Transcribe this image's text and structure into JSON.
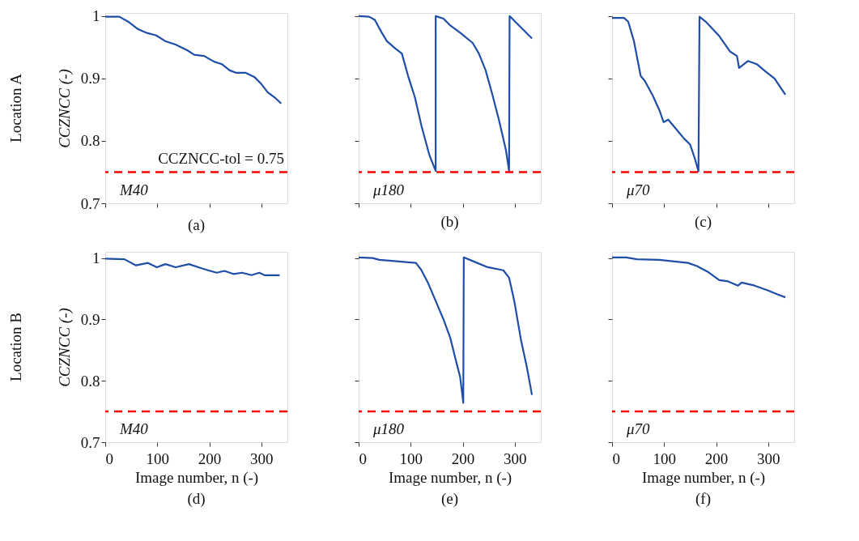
{
  "chart_data": [
    {
      "type": "line",
      "title": "(a)",
      "ylabel": "CCZNCC (-)",
      "tick_labels": "y",
      "annotations": [
        "M40",
        "Location A"
      ],
      "xlim": [
        0,
        350
      ],
      "ylim": [
        0.7,
        1.005
      ],
      "xticks": [
        0,
        100,
        200,
        300
      ],
      "yticks": [
        0.7,
        0.8,
        0.9,
        1
      ],
      "grid": false,
      "series": [
        {
          "color": "#1f4ea8",
          "x": [
            0,
            27,
            46,
            63,
            80,
            98,
            115,
            136,
            158,
            171,
            190,
            209,
            224,
            239,
            252,
            270,
            287,
            300,
            312,
            325,
            338
          ],
          "values": [
            0.999,
            0.999,
            0.99,
            0.979,
            0.973,
            0.969,
            0.96,
            0.954,
            0.945,
            0.938,
            0.936,
            0.927,
            0.923,
            0.913,
            0.909,
            0.909,
            0.902,
            0.891,
            0.878,
            0.87,
            0.86
          ]
        }
      ],
      "ref_lines": [
        {
          "axis": "y",
          "value": 0.75,
          "label": "CCZNCC-tol = 0.75",
          "color": "#ff0000",
          "line_style": "dashed"
        }
      ]
    },
    {
      "type": "line",
      "title": "(b)",
      "tick_labels": false,
      "annotations": [
        "μ180"
      ],
      "xlim": [
        0,
        350
      ],
      "ylim": [
        0.7,
        1.005
      ],
      "xticks": [
        0,
        100,
        200,
        300
      ],
      "yticks": [
        0.7,
        0.8,
        0.9,
        1
      ],
      "grid": false,
      "series": [
        {
          "color": "#1f4ea8",
          "x": [
            0,
            20,
            31,
            44,
            54,
            69,
            83,
            95,
            108,
            121,
            136,
            148,
            148,
            163,
            176,
            197,
            219,
            231,
            244,
            257,
            270,
            283,
            289,
            290,
            303,
            333
          ],
          "values": [
            1.0,
            0.999,
            0.994,
            0.974,
            0.96,
            0.949,
            0.94,
            0.904,
            0.87,
            0.823,
            0.777,
            0.752,
            1.0,
            0.996,
            0.985,
            0.972,
            0.957,
            0.94,
            0.913,
            0.874,
            0.832,
            0.785,
            0.752,
            1.0,
            0.989,
            0.964
          ]
        }
      ],
      "ref_lines": [
        {
          "axis": "y",
          "value": 0.75,
          "color": "#ff0000",
          "line_style": "dashed"
        }
      ]
    },
    {
      "type": "line",
      "title": "(c)",
      "tick_labels": false,
      "annotations": [
        "μ70"
      ],
      "xlim": [
        0,
        350
      ],
      "ylim": [
        0.7,
        1.005
      ],
      "xticks": [
        0,
        100,
        200,
        300
      ],
      "yticks": [
        0.7,
        0.8,
        0.9,
        1
      ],
      "grid": false,
      "series": [
        {
          "color": "#1f4ea8",
          "x": [
            0,
            23,
            31,
            42,
            55,
            63,
            78,
            91,
            99,
            108,
            121,
            138,
            150,
            159,
            166,
            168,
            180,
            206,
            227,
            240,
            244,
            261,
            278,
            295,
            312,
            333
          ],
          "values": [
            0.997,
            0.997,
            0.991,
            0.96,
            0.904,
            0.896,
            0.873,
            0.849,
            0.83,
            0.834,
            0.821,
            0.804,
            0.794,
            0.772,
            0.751,
            0.999,
            0.991,
            0.968,
            0.943,
            0.936,
            0.917,
            0.928,
            0.923,
            0.911,
            0.9,
            0.874
          ]
        }
      ],
      "ref_lines": [
        {
          "axis": "y",
          "value": 0.75,
          "color": "#ff0000",
          "line_style": "dashed"
        }
      ]
    },
    {
      "type": "line",
      "title": "(d)",
      "xlabel": "Image number, n (-)",
      "ylabel": "CCZNCC (-)",
      "annotations": [
        "M40",
        "Location B"
      ],
      "xlim": [
        0,
        350
      ],
      "ylim": [
        0.7,
        1.01
      ],
      "xticks": [
        0,
        100,
        200,
        300
      ],
      "yticks": [
        0.7,
        0.8,
        0.9,
        1
      ],
      "grid": false,
      "series": [
        {
          "color": "#1f4ea8",
          "x": [
            0,
            37,
            59,
            82,
            99,
            116,
            135,
            161,
            186,
            214,
            229,
            246,
            263,
            281,
            296,
            306,
            335
          ],
          "values": [
            0.999,
            0.998,
            0.988,
            0.992,
            0.985,
            0.99,
            0.985,
            0.99,
            0.983,
            0.976,
            0.979,
            0.974,
            0.976,
            0.972,
            0.976,
            0.972,
            0.972
          ]
        }
      ],
      "ref_lines": [
        {
          "axis": "y",
          "value": 0.75,
          "color": "#ff0000",
          "line_style": "dashed"
        }
      ]
    },
    {
      "type": "line",
      "title": "(e)",
      "xlabel": "Image number, n (-)",
      "tick_labels": "x",
      "annotations": [
        "μ180"
      ],
      "xlim": [
        0,
        350
      ],
      "ylim": [
        0.7,
        1.01
      ],
      "xticks": [
        0,
        100,
        200,
        300
      ],
      "yticks": [
        0.7,
        0.8,
        0.9,
        1
      ],
      "grid": false,
      "series": [
        {
          "color": "#1f4ea8",
          "x": [
            0,
            27,
            40,
            69,
            110,
            120,
            133,
            148,
            163,
            176,
            186,
            195,
            201,
            202,
            222,
            248,
            278,
            289,
            299,
            312,
            323,
            333
          ],
          "values": [
            1.001,
            1.0,
            0.997,
            0.995,
            0.992,
            0.981,
            0.96,
            0.93,
            0.9,
            0.87,
            0.836,
            0.806,
            0.764,
            1.001,
            0.994,
            0.985,
            0.98,
            0.968,
            0.93,
            0.866,
            0.823,
            0.777
          ]
        }
      ],
      "ref_lines": [
        {
          "axis": "y",
          "value": 0.75,
          "color": "#ff0000",
          "line_style": "dashed"
        }
      ]
    },
    {
      "type": "line",
      "title": "(f)",
      "xlabel": "Image number, n (-)",
      "tick_labels": "x",
      "annotations": [
        "μ70"
      ],
      "xlim": [
        0,
        350
      ],
      "ylim": [
        0.7,
        1.01
      ],
      "xticks": [
        0,
        100,
        200,
        300
      ],
      "yticks": [
        0.7,
        0.8,
        0.9,
        1
      ],
      "grid": false,
      "series": [
        {
          "color": "#1f4ea8",
          "x": [
            0,
            27,
            48,
            91,
            146,
            163,
            185,
            206,
            223,
            242,
            249,
            274,
            300,
            317,
            333
          ],
          "values": [
            1.001,
            1.001,
            0.998,
            0.997,
            0.992,
            0.987,
            0.977,
            0.964,
            0.962,
            0.955,
            0.96,
            0.955,
            0.947,
            0.941,
            0.936
          ]
        }
      ],
      "ref_lines": [
        {
          "axis": "y",
          "value": 0.75,
          "color": "#ff0000",
          "line_style": "dashed"
        }
      ]
    }
  ]
}
